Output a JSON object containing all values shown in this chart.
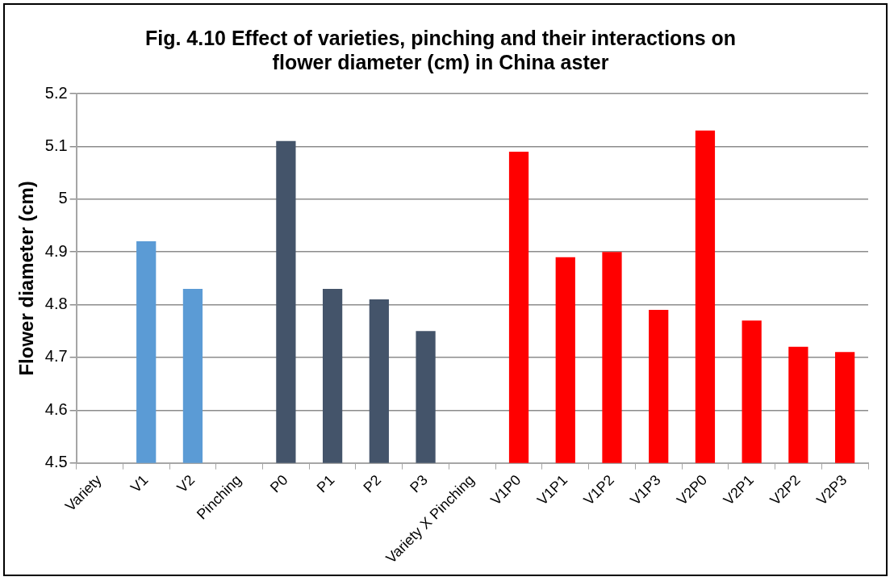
{
  "chart_data": {
    "type": "bar",
    "title": [
      "Fig. 4.10 Effect of varieties, pinching and their interactions on",
      "flower diameter (cm) in China aster"
    ],
    "ylabel": "Flower diameter (cm)",
    "categories": [
      "Variety",
      "V1",
      "V2",
      "Pinching",
      "P0",
      "P1",
      "P2",
      "P3",
      "Variety X Pinching",
      "V1P0",
      "V1P1",
      "V1P2",
      "V1P3",
      "V2P0",
      "V2P1",
      "V2P2",
      "V2P3"
    ],
    "values": [
      null,
      4.92,
      4.83,
      null,
      5.11,
      4.83,
      4.81,
      4.75,
      null,
      5.09,
      4.89,
      4.9,
      4.79,
      5.13,
      4.77,
      4.72,
      4.71
    ],
    "colors": [
      "#5b9bd5",
      "#5b9bd5",
      "#5b9bd5",
      "#44546a",
      "#44546a",
      "#44546a",
      "#44546a",
      "#44546a",
      "#ff0000",
      "#ff0000",
      "#ff0000",
      "#ff0000",
      "#ff0000",
      "#ff0000",
      "#ff0000",
      "#ff0000",
      "#ff0000"
    ],
    "ylim": [
      4.5,
      5.2
    ],
    "yticks": [
      4.5,
      4.6,
      4.7,
      4.8,
      4.9,
      {
        "value": 5,
        "label": "5"
      },
      5.1,
      5.2
    ],
    "grid": "y",
    "legend": false
  }
}
